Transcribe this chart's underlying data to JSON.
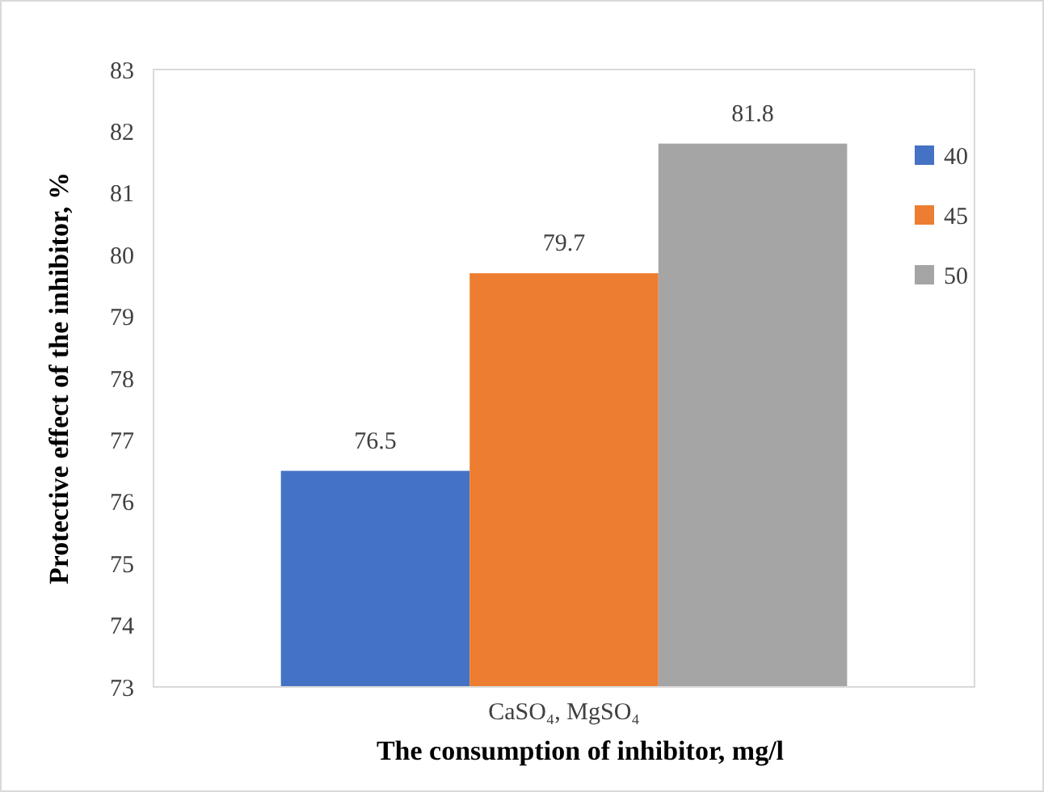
{
  "chart_data": {
    "type": "bar",
    "xlabel": "The consumption of inhibitor,  mg/l",
    "ylabel": "Protective effect of the  inhibitor, %",
    "categories": [
      "CaSO₄, MgSO₄"
    ],
    "series": [
      {
        "name": "40",
        "color": "#4472c4",
        "values": [
          76.5
        ]
      },
      {
        "name": "45",
        "color": "#ed7d31",
        "values": [
          79.7
        ]
      },
      {
        "name": "50",
        "color": "#a5a5a5",
        "values": [
          81.8
        ]
      }
    ],
    "ylim": [
      73,
      83
    ],
    "yticks": [
      73,
      74,
      75,
      76,
      77,
      78,
      79,
      80,
      81,
      82,
      83
    ],
    "data_labels": true,
    "legend": "right",
    "grid": false
  }
}
